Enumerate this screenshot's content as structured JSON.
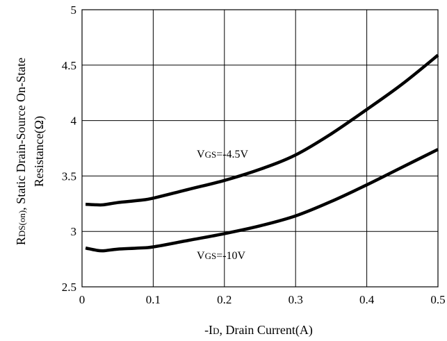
{
  "chart_data": {
    "type": "line",
    "title": "",
    "xlabel": {
      "pre": "-I",
      "sub": "D",
      "post": ", Drain Current(A)"
    },
    "ylabel": {
      "line1_pre": "R",
      "line1_sub1": "DS",
      "line1_sub2": "(on)",
      "line1_post": ", Static Drain-Source On-State",
      "line2": "Resistance(Ω)"
    },
    "xlim": [
      0,
      0.5
    ],
    "ylim": [
      2.5,
      5
    ],
    "xticks": [
      "0",
      "0.1",
      "0.2",
      "0.3",
      "0.4",
      "0.5"
    ],
    "yticks": [
      "2.5",
      "3",
      "3.5",
      "4",
      "4.5",
      "5"
    ],
    "grid": true,
    "series": [
      {
        "name": {
          "pre": "V",
          "sub": "GS",
          "post": "=-4.5V"
        },
        "x": [
          0.005,
          0.02,
          0.03,
          0.05,
          0.08,
          0.1,
          0.15,
          0.2,
          0.25,
          0.3,
          0.35,
          0.4,
          0.45,
          0.5
        ],
        "y": [
          3.245,
          3.24,
          3.24,
          3.26,
          3.28,
          3.3,
          3.38,
          3.46,
          3.56,
          3.69,
          3.88,
          4.1,
          4.33,
          4.59
        ]
      },
      {
        "name": {
          "pre": "V",
          "sub": "GS",
          "post": "=-10V"
        },
        "x": [
          0.005,
          0.02,
          0.03,
          0.05,
          0.08,
          0.1,
          0.15,
          0.2,
          0.25,
          0.3,
          0.35,
          0.4,
          0.45,
          0.5
        ],
        "y": [
          2.85,
          2.83,
          2.825,
          2.84,
          2.85,
          2.86,
          2.92,
          2.98,
          3.05,
          3.14,
          3.27,
          3.42,
          3.58,
          3.74
        ]
      }
    ],
    "line_color": "#000000"
  }
}
